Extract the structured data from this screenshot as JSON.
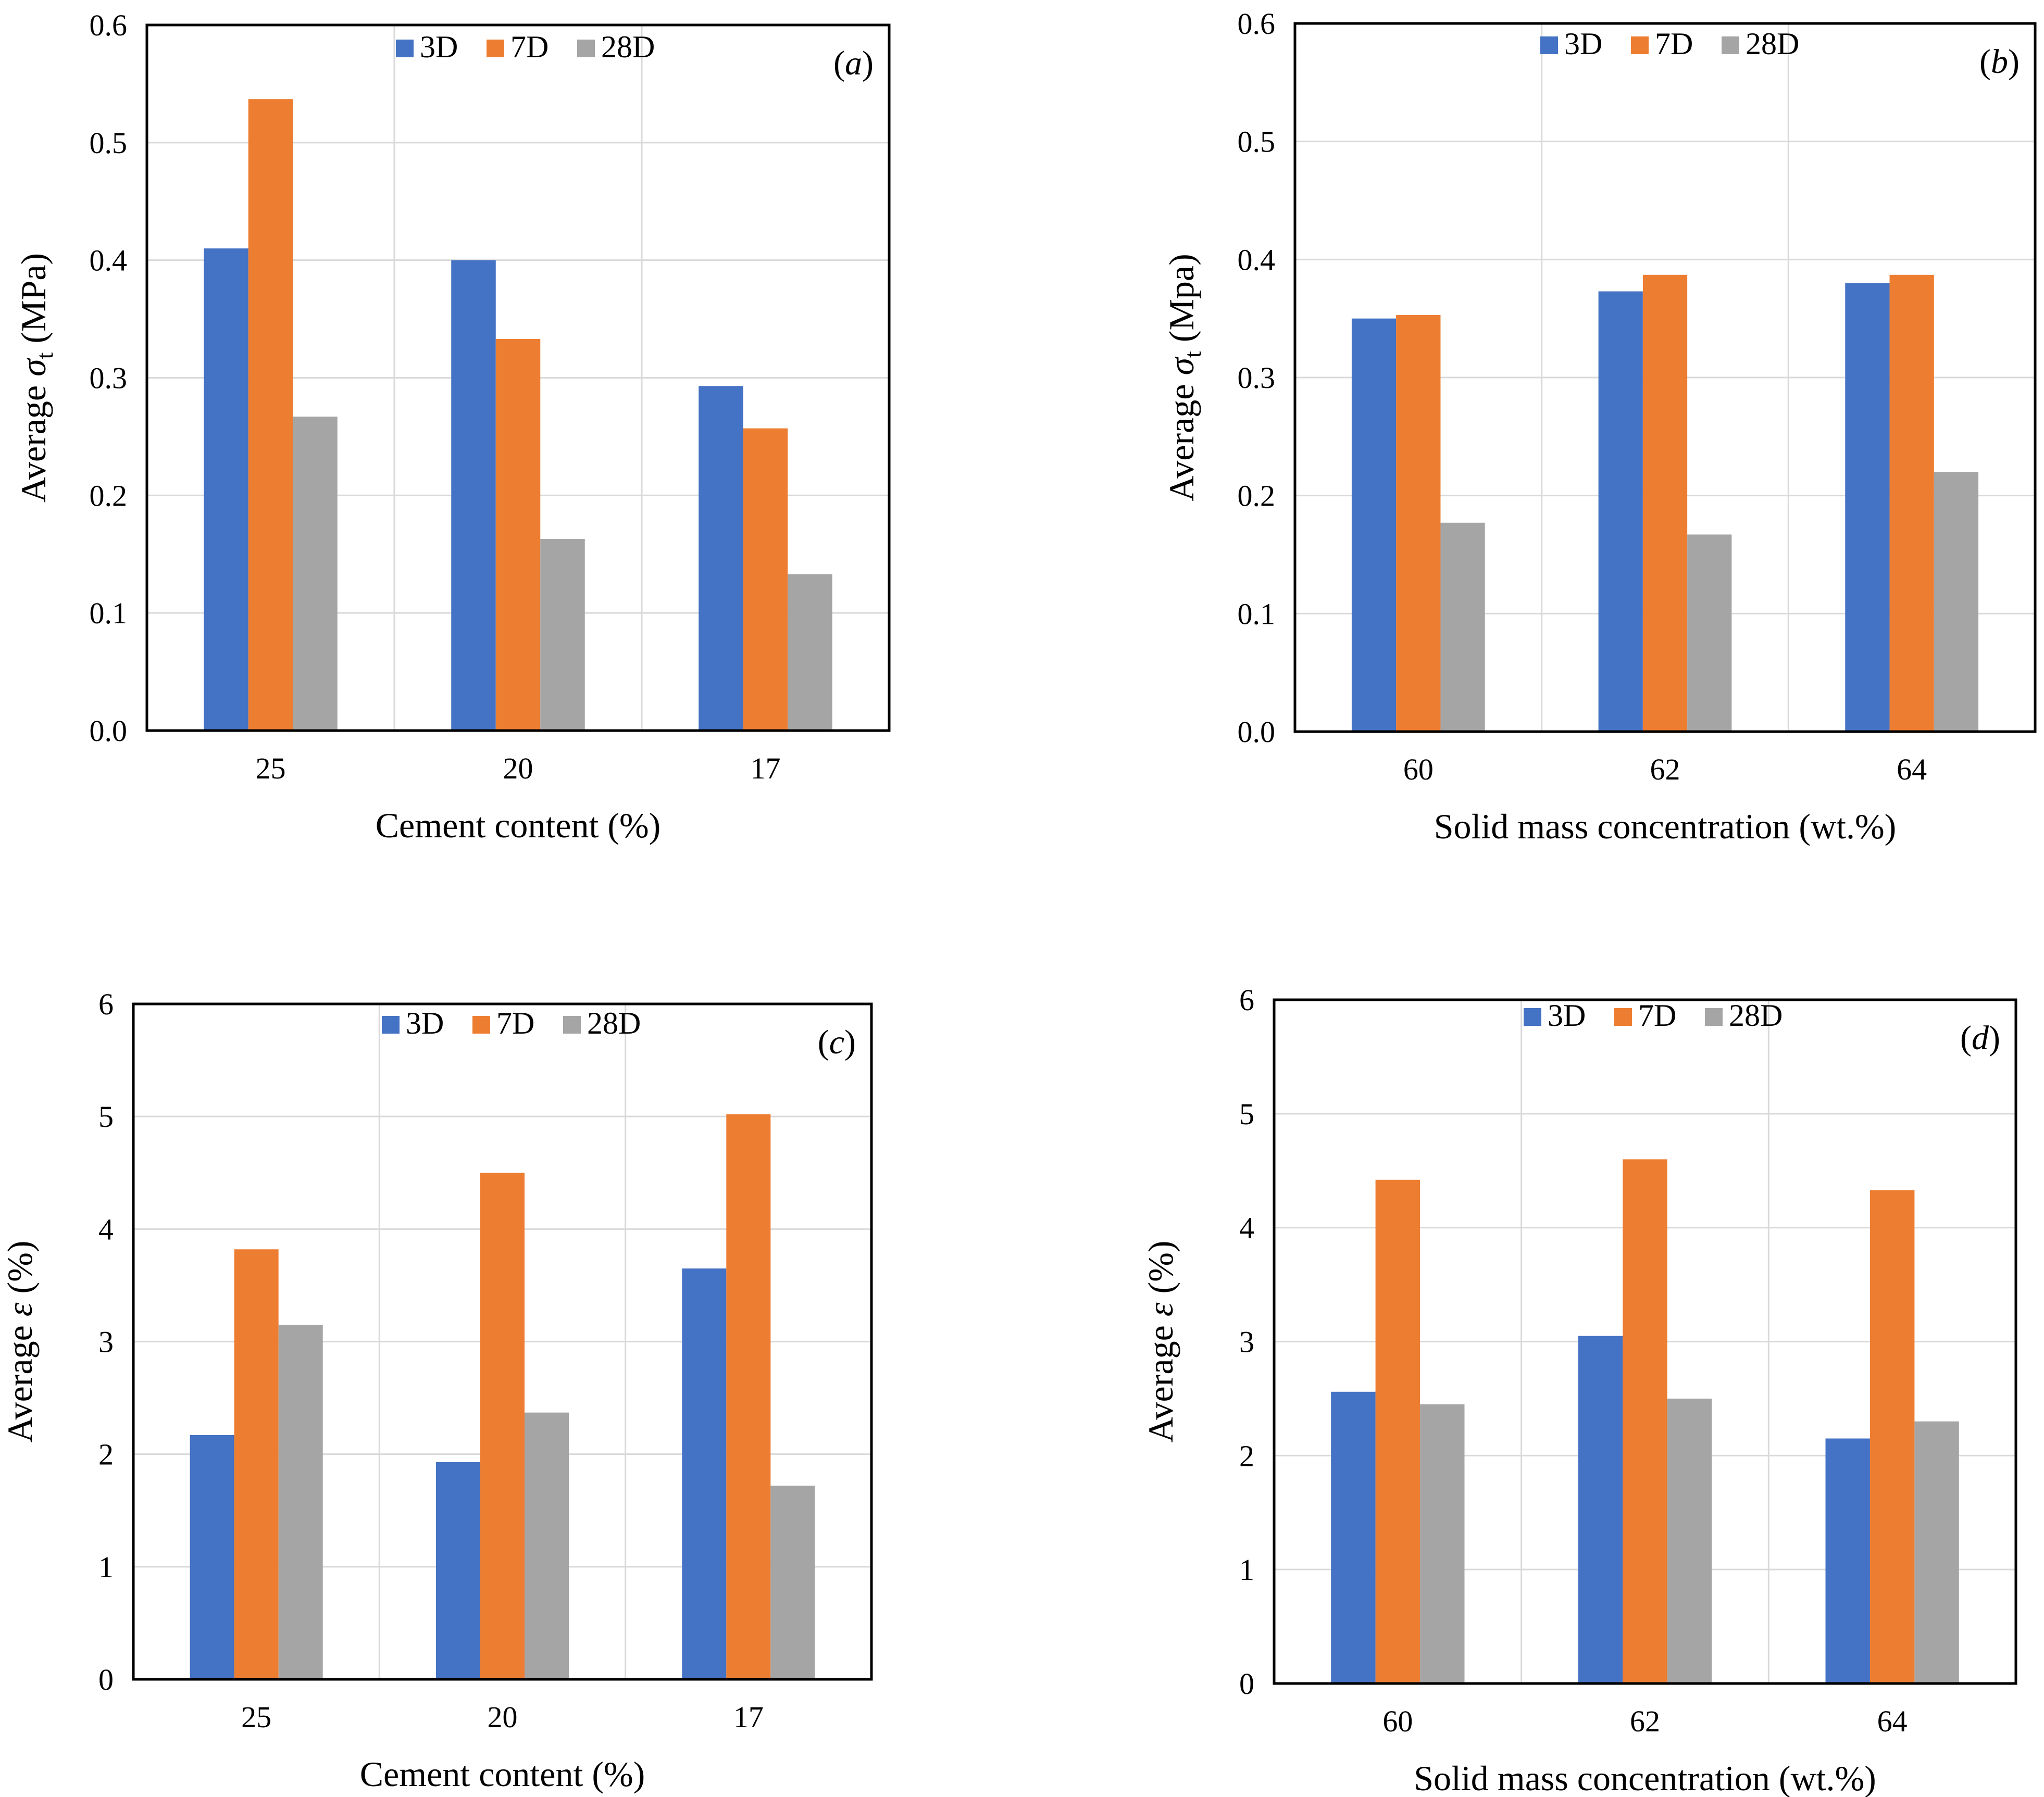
{
  "chart_data": [
    {
      "id": "a",
      "type": "bar",
      "panel_label": "a",
      "categories": [
        "25",
        "20",
        "17"
      ],
      "xlabel": "Cement content (%)",
      "ylabel_prefix": "Average ",
      "ylabel_symbol": "σ",
      "ylabel_sub": "t",
      "ylabel_suffix": " (MPa)",
      "ylim": [
        0,
        0.6
      ],
      "yticks": [
        "0.0",
        "0.1",
        "0.2",
        "0.3",
        "0.4",
        "0.5",
        "0.6"
      ],
      "grid": true,
      "legend_position": "top-center",
      "series": [
        {
          "name": "3D",
          "color": "#4472C4",
          "values": [
            0.41,
            0.4,
            0.293
          ]
        },
        {
          "name": "7D",
          "color": "#ED7D31",
          "values": [
            0.537,
            0.333,
            0.257
          ]
        },
        {
          "name": "28D",
          "color": "#A5A5A5",
          "values": [
            0.267,
            0.163,
            0.133
          ]
        }
      ]
    },
    {
      "id": "b",
      "type": "bar",
      "panel_label": "b",
      "categories": [
        "60",
        "62",
        "64"
      ],
      "xlabel": "Solid mass concentration (wt.%)",
      "ylabel_prefix": "Average ",
      "ylabel_symbol": "σ",
      "ylabel_sub": "t",
      "ylabel_suffix": " (Mpa)",
      "ylim": [
        0,
        0.6
      ],
      "yticks": [
        "0.0",
        "0.1",
        "0.2",
        "0.3",
        "0.4",
        "0.5",
        "0.6"
      ],
      "grid": true,
      "legend_position": "top-center",
      "series": [
        {
          "name": "3D",
          "color": "#4472C4",
          "values": [
            0.35,
            0.373,
            0.38
          ]
        },
        {
          "name": "7D",
          "color": "#ED7D31",
          "values": [
            0.353,
            0.387,
            0.387
          ]
        },
        {
          "name": "28D",
          "color": "#A5A5A5",
          "values": [
            0.177,
            0.167,
            0.22
          ]
        }
      ]
    },
    {
      "id": "c",
      "type": "bar",
      "panel_label": "c",
      "categories": [
        "25",
        "20",
        "17"
      ],
      "xlabel": "Cement content (%)",
      "ylabel_prefix": "Average ",
      "ylabel_symbol": "ε",
      "ylabel_sub": "",
      "ylabel_suffix": " (%)",
      "ylim": [
        0,
        6
      ],
      "yticks": [
        "0",
        "1",
        "2",
        "3",
        "4",
        "5",
        "6"
      ],
      "grid": true,
      "legend_position": "top-center",
      "series": [
        {
          "name": "3D",
          "color": "#4472C4",
          "values": [
            2.17,
            1.93,
            3.65
          ]
        },
        {
          "name": "7D",
          "color": "#ED7D31",
          "values": [
            3.82,
            4.5,
            5.02
          ]
        },
        {
          "name": "28D",
          "color": "#A5A5A5",
          "values": [
            3.15,
            2.37,
            1.72
          ]
        }
      ]
    },
    {
      "id": "d",
      "type": "bar",
      "panel_label": "d",
      "categories": [
        "60",
        "62",
        "64"
      ],
      "xlabel": "Solid mass concentration (wt.%)",
      "ylabel_prefix": "Average ",
      "ylabel_symbol": "ε",
      "ylabel_sub": "",
      "ylabel_suffix": " (%)",
      "ylim": [
        0,
        6
      ],
      "yticks": [
        "0",
        "1",
        "2",
        "3",
        "4",
        "5",
        "6"
      ],
      "grid": true,
      "legend_position": "top-center",
      "series": [
        {
          "name": "3D",
          "color": "#4472C4",
          "values": [
            2.56,
            3.05,
            2.15
          ]
        },
        {
          "name": "7D",
          "color": "#ED7D31",
          "values": [
            4.42,
            4.6,
            4.33
          ]
        },
        {
          "name": "28D",
          "color": "#A5A5A5",
          "values": [
            2.45,
            2.5,
            2.3
          ]
        }
      ]
    }
  ]
}
